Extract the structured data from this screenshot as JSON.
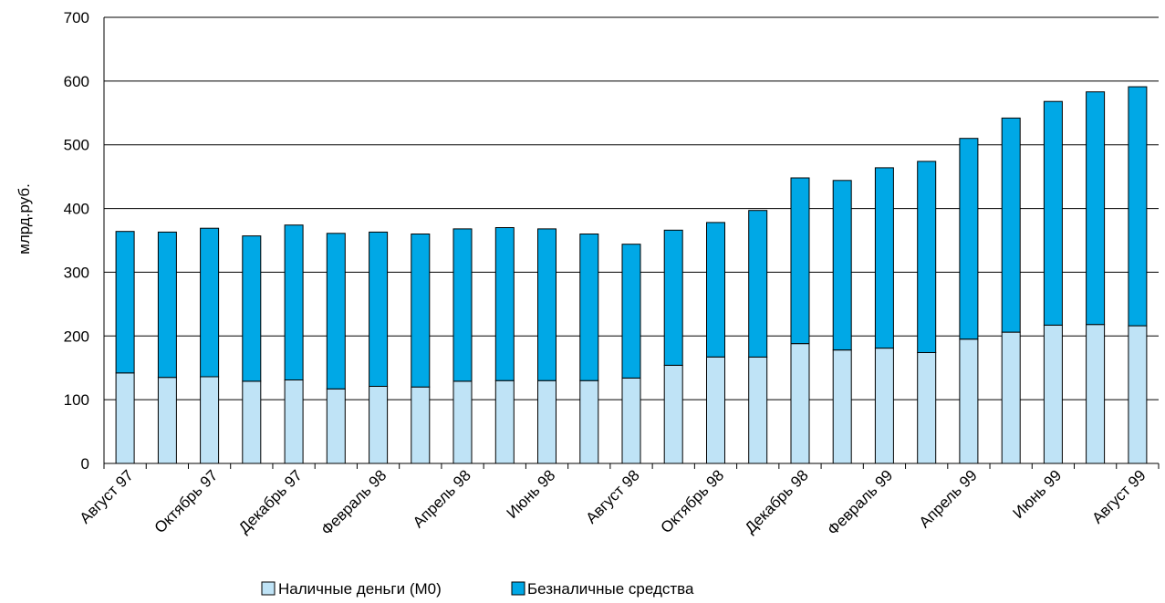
{
  "chart_data": {
    "type": "bar",
    "stacked": true,
    "ylabel": "млрд.руб.",
    "xlabel": "",
    "ylim": [
      0,
      700
    ],
    "yticks": [
      "0",
      "100",
      "200",
      "300",
      "400",
      "500",
      "600",
      "700"
    ],
    "grid": true,
    "legend_position": "bottom",
    "categories": [
      "Август 97",
      "Сентябрь 97",
      "Октябрь 97",
      "Ноябрь 97",
      "Декабрь 97",
      "Январь 98",
      "Февраль 98",
      "Март 98",
      "Апрель 98",
      "Май 98",
      "Июнь 98",
      "Июль 98",
      "Август 98",
      "Сентябрь 98",
      "Октябрь 98",
      "Ноябрь 98",
      "Декабрь 98",
      "Январь 99",
      "Февраль 99",
      "Март 99",
      "Апрель 99",
      "Май 99",
      "Июнь 99",
      "Июль 99",
      "Август 99"
    ],
    "shown_category_labels": [
      "Август 97",
      "Октябрь 97",
      "Декабрь 97",
      "Февраль 98",
      "Апрель 98",
      "Июнь 98",
      "Август 98",
      "Октябрь 98",
      "Декабрь 98",
      "Февраль 99",
      "Апрель 99",
      "Июнь 99",
      "Август 99"
    ],
    "series": [
      {
        "name": "Наличные деньги (М0)",
        "color": "#bfe3f6",
        "values": [
          142,
          135,
          136,
          129,
          131,
          117,
          121,
          120,
          129,
          130,
          130,
          130,
          134,
          154,
          167,
          167,
          188,
          178,
          181,
          174,
          195,
          206,
          217,
          218,
          216
        ]
      },
      {
        "name": "Безналичные средства",
        "color": "#00a8e6",
        "values": [
          222,
          228,
          233,
          228,
          243,
          244,
          242,
          240,
          239,
          240,
          238,
          230,
          210,
          212,
          211,
          230,
          260,
          266,
          283,
          300,
          315,
          336,
          351,
          365,
          375
        ]
      }
    ]
  }
}
